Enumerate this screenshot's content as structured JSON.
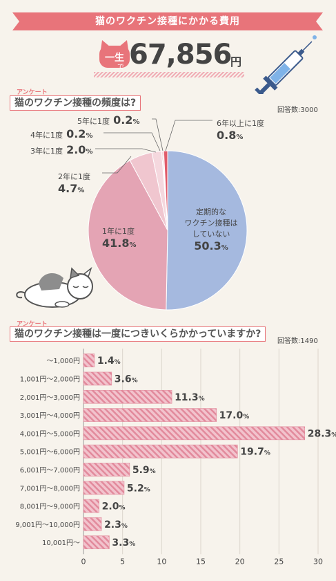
{
  "header": {
    "title": "猫のワクチン接種にかかる費用"
  },
  "total": {
    "label": "一生",
    "suffix": "で",
    "value": "67,856",
    "unit": "円"
  },
  "colors": {
    "accent": "#e8747a",
    "blue": "#a5b9df",
    "pink": "#e4a4b4",
    "bar": "#e6a3b3"
  },
  "survey_tag": "アンケート",
  "chart_data": [
    {
      "type": "pie",
      "title": "猫のワクチン接種の頻度は?",
      "count_label": "回答数:3000",
      "slices": [
        {
          "label": "定期的なワクチン接種はしていない",
          "label_lines": [
            "定期的な",
            "ワクチン接種は",
            "していない"
          ],
          "value": 50.3,
          "value_text": "50.3",
          "color": "#a5b9df"
        },
        {
          "label": "1年に1度",
          "value": 41.8,
          "value_text": "41.8",
          "color": "#e4a4b4"
        },
        {
          "label": "2年に1度",
          "value": 4.7,
          "value_text": "4.7",
          "color": "#f0c6cf"
        },
        {
          "label": "3年に1度",
          "value": 2.0,
          "value_text": "2.0",
          "color": "#f5d8de"
        },
        {
          "label": "4年に1度",
          "value": 0.2,
          "value_text": "0.2",
          "color": "#ea8e9c"
        },
        {
          "label": "5年に1度",
          "value": 0.2,
          "value_text": "0.2",
          "color": "#d9707c"
        },
        {
          "label": "6年以上に1度",
          "value": 0.8,
          "value_text": "0.8",
          "color": "#e15b6a"
        }
      ],
      "unit": "%"
    },
    {
      "type": "bar",
      "title": "猫のワクチン接種は一度につきいくらかかっていますか?",
      "count_label": "回答数:1490",
      "categories": [
        "〜1,000円",
        "1,001円〜2,000円",
        "2,001円〜3,000円",
        "3,001円〜4,000円",
        "4,001円〜5,000円",
        "5,001円〜6,000円",
        "6,001円〜7,000円",
        "7,001円〜8,000円",
        "8,001円〜9,000円",
        "9,001円〜10,000円",
        "10,001円〜"
      ],
      "values": [
        1.4,
        3.6,
        11.3,
        17.0,
        28.3,
        19.7,
        5.9,
        5.2,
        2.0,
        2.3,
        3.3
      ],
      "value_texts": [
        "1.4",
        "3.6",
        "11.3",
        "17.0",
        "28.3",
        "19.7",
        "5.9",
        "5.2",
        "2.0",
        "2.3",
        "3.3"
      ],
      "xlim": [
        0,
        30
      ],
      "xticks": [
        "0",
        "5",
        "10",
        "15",
        "20",
        "25",
        "30"
      ],
      "unit": "%",
      "orientation": "horizontal",
      "grid": true
    }
  ]
}
